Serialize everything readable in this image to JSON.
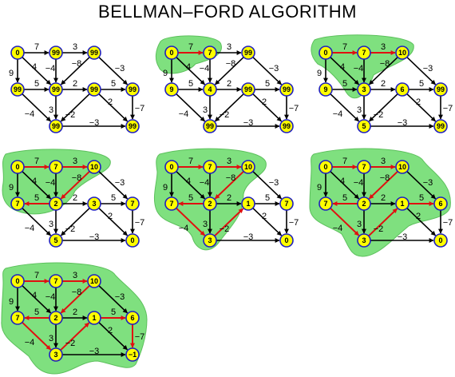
{
  "title": "BELLMAN–FORD ALGORITHM",
  "colors": {
    "node_fill": "#ffff00",
    "node_stroke": "#1f1fbf",
    "edge": "#000000",
    "edge_relaxed": "#e01010",
    "highlight_region": "#7fe07f"
  },
  "node_ids": [
    "s",
    "a",
    "b",
    "c",
    "d",
    "e",
    "f",
    "g",
    "h"
  ],
  "edges": [
    {
      "from": "s",
      "to": "a",
      "w": "7"
    },
    {
      "from": "a",
      "to": "b",
      "w": "3"
    },
    {
      "from": "s",
      "to": "c",
      "w": "9"
    },
    {
      "from": "s",
      "to": "d",
      "w": "4"
    },
    {
      "from": "a",
      "to": "d",
      "w": "−4"
    },
    {
      "from": "b",
      "to": "d",
      "w": "−8"
    },
    {
      "from": "b",
      "to": "f",
      "w": "−3"
    },
    {
      "from": "c",
      "to": "d",
      "w": "5"
    },
    {
      "from": "d",
      "to": "e",
      "w": "2"
    },
    {
      "from": "e",
      "to": "f",
      "w": "5"
    },
    {
      "from": "d",
      "to": "g",
      "w": "3"
    },
    {
      "from": "c",
      "to": "g",
      "w": "−4"
    },
    {
      "from": "e",
      "to": "g",
      "w": "−2"
    },
    {
      "from": "e",
      "to": "h",
      "w": "2"
    },
    {
      "from": "f",
      "to": "h",
      "w": "−7"
    },
    {
      "from": "g",
      "to": "h",
      "w": "−3"
    }
  ],
  "panels": [
    {
      "values": {
        "s": "0",
        "a": "99",
        "b": "99",
        "c": "99",
        "d": "99",
        "e": "99",
        "f": "99",
        "g": "99",
        "h": "99"
      },
      "red_edges": []
    },
    {
      "values": {
        "s": "0",
        "a": "7",
        "b": "99",
        "c": "9",
        "d": "4",
        "e": "99",
        "f": "99",
        "g": "99",
        "h": "99"
      },
      "red_edges": [
        [
          "s",
          "a"
        ]
      ]
    },
    {
      "values": {
        "s": "0",
        "a": "7",
        "b": "10",
        "c": "9",
        "d": "3",
        "e": "6",
        "f": "99",
        "g": "5",
        "h": "99"
      },
      "red_edges": [
        [
          "s",
          "a"
        ],
        [
          "a",
          "b"
        ]
      ]
    },
    {
      "values": {
        "s": "0",
        "a": "7",
        "b": "10",
        "c": "7",
        "d": "2",
        "e": "3",
        "f": "7",
        "g": "5",
        "h": "0"
      },
      "red_edges": [
        [
          "s",
          "a"
        ],
        [
          "a",
          "b"
        ],
        [
          "b",
          "d"
        ],
        [
          "d",
          "c"
        ]
      ]
    },
    {
      "values": {
        "s": "0",
        "a": "7",
        "b": "10",
        "c": "7",
        "d": "2",
        "e": "1",
        "f": "7",
        "g": "3",
        "h": "0"
      },
      "red_edges": [
        [
          "s",
          "a"
        ],
        [
          "a",
          "b"
        ],
        [
          "b",
          "d"
        ],
        [
          "d",
          "c"
        ],
        [
          "c",
          "g"
        ],
        [
          "g",
          "e"
        ]
      ]
    },
    {
      "values": {
        "s": "0",
        "a": "7",
        "b": "10",
        "c": "7",
        "d": "2",
        "e": "1",
        "f": "6",
        "g": "3",
        "h": "0"
      },
      "red_edges": [
        [
          "s",
          "a"
        ],
        [
          "a",
          "b"
        ],
        [
          "b",
          "d"
        ],
        [
          "d",
          "c"
        ],
        [
          "c",
          "g"
        ],
        [
          "g",
          "e"
        ],
        [
          "e",
          "f"
        ]
      ]
    },
    {
      "values": {
        "s": "0",
        "a": "7",
        "b": "10",
        "c": "7",
        "d": "2",
        "e": "1",
        "f": "6",
        "g": "3",
        "h": "−1"
      },
      "red_edges": [
        [
          "s",
          "a"
        ],
        [
          "a",
          "b"
        ],
        [
          "b",
          "d"
        ],
        [
          "d",
          "c"
        ],
        [
          "c",
          "g"
        ],
        [
          "g",
          "e"
        ],
        [
          "e",
          "f"
        ],
        [
          "f",
          "h"
        ]
      ]
    }
  ]
}
